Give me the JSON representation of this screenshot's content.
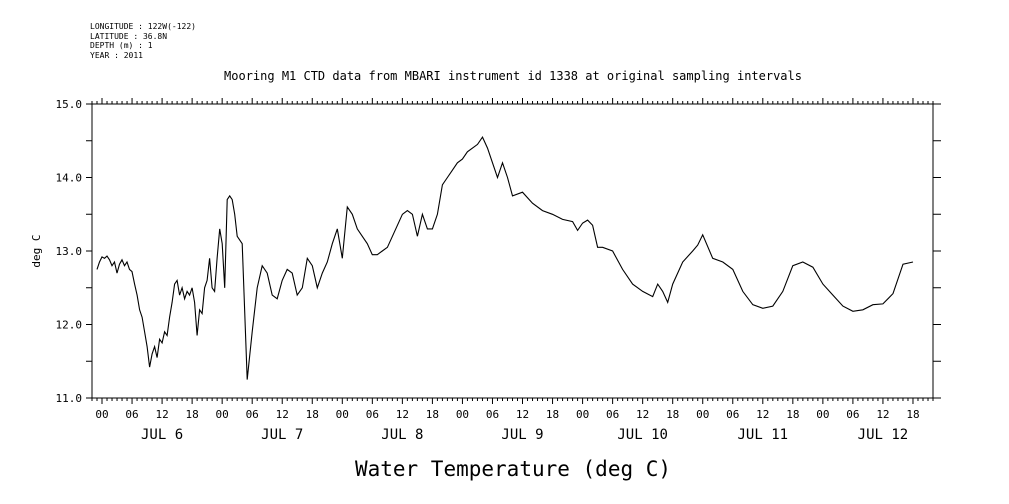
{
  "header": {
    "lines": [
      "LONGITUDE : 122W(-122)",
      "LATITUDE : 36.8N",
      "DEPTH (m) : 1",
      "YEAR : 2011"
    ]
  },
  "chart_data": {
    "type": "line",
    "title": "Mooring M1 CTD data from MBARI instrument id 1338 at original sampling intervals",
    "xlabel": "Water Temperature (deg C)",
    "ylabel": "deg C",
    "ylim": [
      11.0,
      15.0
    ],
    "yticks": [
      "11.0",
      "12.0",
      "13.0",
      "14.0",
      "15.0"
    ],
    "xlim_hours": [
      -2,
      166
    ],
    "hour_tick_labels": [
      "00",
      "06",
      "12",
      "18"
    ],
    "day_labels": [
      "JUL  6",
      "JUL  7",
      "JUL  8",
      "JUL  9",
      "JUL 10",
      "JUL 11",
      "JUL 12"
    ],
    "grid": false,
    "series": [
      {
        "x_hours_from_jul6_00": [
          -1.0,
          -0.5,
          0.0,
          0.5,
          1.0,
          1.5,
          2.0,
          2.5,
          3.0,
          3.5,
          4.0,
          4.5,
          5.0,
          5.5,
          6.0,
          6.5,
          7.0,
          7.5,
          8.0,
          8.5,
          9.0,
          9.5,
          10.0,
          10.5,
          11.0,
          11.5,
          12.0,
          12.5,
          13.0,
          13.5,
          14.0,
          14.5,
          15.0,
          15.5,
          16.0,
          16.5,
          17.0,
          17.5,
          18.0,
          18.5,
          19.0,
          19.5,
          20.0,
          20.5,
          21.0,
          21.5,
          22.0,
          22.5,
          23.0,
          23.5,
          24.0,
          24.5,
          25.0,
          25.5,
          26.0,
          26.5,
          27.0,
          28.0,
          29.0,
          30.0,
          31.0,
          32.0,
          33.0,
          34.0,
          35.0,
          36.0,
          37.0,
          38.0,
          39.0,
          40.0,
          41.0,
          42.0,
          43.0,
          44.0,
          45.0,
          46.0,
          47.0,
          48.0,
          49.0,
          50.0,
          51.0,
          52.0,
          53.0,
          54.0,
          55.0,
          56.0,
          57.0,
          58.0,
          59.0,
          60.0,
          61.0,
          62.0,
          63.0,
          64.0,
          65.0,
          66.0,
          67.0,
          68.0,
          69.0,
          70.0,
          71.0,
          72.0,
          73.0,
          74.0,
          75.0,
          76.0,
          77.0,
          78.0,
          79.0,
          80.0,
          81.0,
          82.0,
          84.0,
          86.0,
          88.0,
          90.0,
          92.0,
          94.0,
          95.0,
          96.0,
          97.0,
          98.0,
          99.0,
          100.0,
          102.0,
          104.0,
          106.0,
          108.0,
          110.0,
          111.0,
          112.0,
          113.0,
          114.0,
          116.0,
          118.0,
          119.0,
          120.0,
          122.0,
          124.0,
          126.0,
          128.0,
          130.0,
          132.0,
          134.0,
          136.0,
          138.0,
          140.0,
          142.0,
          144.0,
          146.0,
          148.0,
          150.0,
          152.0,
          154.0,
          156.0,
          158.0,
          160.0,
          162.0,
          163.5
        ],
        "y_deg_c": [
          12.75,
          12.85,
          12.92,
          12.9,
          12.93,
          12.88,
          12.8,
          12.85,
          12.7,
          12.82,
          12.88,
          12.8,
          12.85,
          12.75,
          12.72,
          12.55,
          12.4,
          12.2,
          12.1,
          11.9,
          11.7,
          11.42,
          11.6,
          11.7,
          11.55,
          11.8,
          11.75,
          11.9,
          11.85,
          12.1,
          12.3,
          12.55,
          12.6,
          12.4,
          12.5,
          12.35,
          12.45,
          12.4,
          12.5,
          12.3,
          11.85,
          12.2,
          12.15,
          12.5,
          12.6,
          12.9,
          12.5,
          12.45,
          12.9,
          13.3,
          13.1,
          12.5,
          13.7,
          13.75,
          13.7,
          13.5,
          13.2,
          13.1,
          11.25,
          11.9,
          12.5,
          12.8,
          12.7,
          12.4,
          12.35,
          12.6,
          12.75,
          12.7,
          12.4,
          12.5,
          12.9,
          12.8,
          12.5,
          12.7,
          12.85,
          13.1,
          13.3,
          12.9,
          13.6,
          13.5,
          13.3,
          13.2,
          13.1,
          12.95,
          12.95,
          13.0,
          13.05,
          13.2,
          13.35,
          13.5,
          13.55,
          13.5,
          13.2,
          13.5,
          13.3,
          13.3,
          13.5,
          13.9,
          14.0,
          14.1,
          14.2,
          14.25,
          14.35,
          14.4,
          14.45,
          14.55,
          14.4,
          14.2,
          14.0,
          14.2,
          14.0,
          13.75,
          13.8,
          13.65,
          13.55,
          13.5,
          13.43,
          13.4,
          13.28,
          13.38,
          13.42,
          13.35,
          13.05,
          13.05,
          13.0,
          12.75,
          12.55,
          12.45,
          12.38,
          12.55,
          12.45,
          12.3,
          12.55,
          12.85,
          13.0,
          13.08,
          13.22,
          12.9,
          12.85,
          12.75,
          12.45,
          12.27,
          12.22,
          12.25,
          12.45,
          12.8,
          12.85,
          12.78,
          12.55,
          12.4,
          12.25,
          12.18,
          12.2,
          12.27,
          12.28,
          12.42,
          12.82,
          12.85
        ]
      }
    ]
  }
}
